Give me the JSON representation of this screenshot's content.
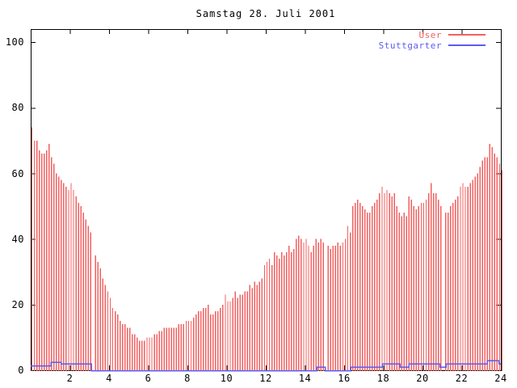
{
  "title": "Samstag 28. Juli 2001",
  "colors": {
    "user": "#f26060",
    "stuttgarter": "#5c5cf0",
    "axis": "#000000",
    "background": "#ffffff"
  },
  "legend": {
    "position": "top-right",
    "entries": [
      {
        "label": "User",
        "color": "#f26060"
      },
      {
        "label": "Stuttgarter",
        "color": "#5c5cf0"
      }
    ]
  },
  "axes": {
    "y_tick_labels": [
      "0",
      "20",
      "40",
      "60",
      "80",
      "100"
    ],
    "x_tick_labels": [
      "2",
      "4",
      "6",
      "8",
      "10",
      "12",
      "14",
      "16",
      "18",
      "20",
      "22",
      "24"
    ]
  },
  "chart_data": {
    "type": "bar",
    "title": "Samstag 28. Juli 2001",
    "xlabel": "",
    "ylabel": "",
    "xlim": [
      0,
      24
    ],
    "ylim": [
      0,
      104
    ],
    "x_ticks": [
      2,
      4,
      6,
      8,
      10,
      12,
      14,
      16,
      18,
      20,
      22,
      24
    ],
    "y_ticks": [
      0,
      20,
      40,
      60,
      80,
      100
    ],
    "grid": false,
    "legend_position": "top-right",
    "series": [
      {
        "name": "User",
        "style": "impulses",
        "color": "#f26060",
        "x_start": 0,
        "x_step_hours": 0.125,
        "values": [
          74,
          70,
          70,
          67,
          66,
          66,
          67,
          69,
          65,
          63,
          60,
          59,
          58,
          57,
          56,
          55,
          57,
          55,
          53,
          51,
          50,
          48,
          46,
          44,
          42,
          null,
          35,
          33,
          31,
          28,
          26,
          24,
          22,
          19,
          18,
          17,
          15,
          14,
          14,
          13,
          13,
          11,
          11,
          10,
          9,
          9,
          9,
          10,
          10,
          10,
          11,
          11,
          12,
          12,
          13,
          13,
          13,
          13,
          13,
          13,
          14,
          14,
          14,
          15,
          15,
          15,
          16,
          17,
          18,
          18,
          19,
          19,
          20,
          17,
          17,
          18,
          18,
          19,
          20,
          23,
          21,
          21,
          22,
          24,
          22,
          23,
          23,
          24,
          24,
          26,
          25,
          27,
          26,
          27,
          28,
          32,
          33,
          34,
          32,
          36,
          35,
          34,
          36,
          35,
          36,
          38,
          36,
          37,
          40,
          41,
          40,
          39,
          40,
          38,
          36,
          38,
          40,
          39,
          40,
          39,
          null,
          38,
          37,
          38,
          38,
          39,
          38,
          39,
          40,
          44,
          42,
          50,
          51,
          52,
          51,
          50,
          49,
          48,
          48,
          50,
          51,
          52,
          54,
          56,
          54,
          55,
          54,
          53,
          54,
          50,
          48,
          47,
          48,
          47,
          53,
          52,
          50,
          49,
          50,
          51,
          51,
          52,
          54,
          57,
          54,
          54,
          52,
          50,
          null,
          48,
          48,
          50,
          51,
          52,
          53,
          56,
          57,
          56,
          56,
          57,
          58,
          59,
          60,
          62,
          64,
          65,
          65,
          69,
          68,
          66,
          65,
          63,
          61
        ]
      },
      {
        "name": "Stuttgarter",
        "style": "steps",
        "color": "#5c5cf0",
        "points": [
          [
            0,
            1.4
          ],
          [
            1.05,
            1.4
          ],
          [
            1.05,
            2.5
          ],
          [
            1.55,
            2.5
          ],
          [
            1.55,
            2
          ],
          [
            3.1,
            2
          ],
          [
            3.1,
            0
          ],
          [
            14.6,
            0
          ],
          [
            14.6,
            1
          ],
          [
            15.05,
            1
          ],
          [
            15.05,
            0
          ],
          [
            16.35,
            0
          ],
          [
            16.35,
            1
          ],
          [
            17.95,
            1
          ],
          [
            17.95,
            2
          ],
          [
            18.85,
            2
          ],
          [
            18.85,
            1
          ],
          [
            19.3,
            1
          ],
          [
            19.3,
            2
          ],
          [
            20.9,
            2
          ],
          [
            20.9,
            1
          ],
          [
            21.2,
            1
          ],
          [
            21.2,
            2
          ],
          [
            23.3,
            2
          ],
          [
            23.3,
            3
          ],
          [
            23.9,
            3
          ],
          [
            23.9,
            2
          ],
          [
            24,
            2
          ]
        ]
      }
    ]
  }
}
